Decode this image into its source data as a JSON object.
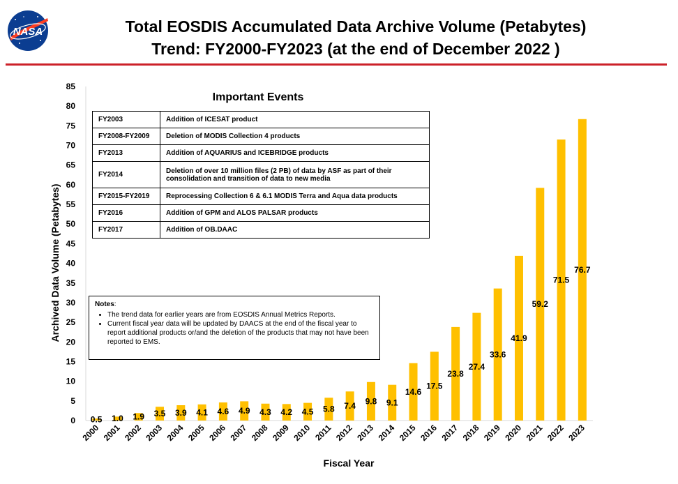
{
  "header": {
    "logo_text": "NASA",
    "title_line1": "Total EOSDIS Accumulated Data Archive Volume (Petabytes)",
    "title_line2": "Trend: FY2000-FY2023 (at the end of December 2022 )"
  },
  "colors": {
    "bar": "#ffc000",
    "rule": "#cc2129",
    "logo_blue": "#0b3d91",
    "logo_red": "#fc3d21"
  },
  "events": {
    "title": "Important Events",
    "rows": [
      {
        "year": "FY2003",
        "desc": "Addition of ICESAT product"
      },
      {
        "year": "FY2008-FY2009",
        "desc": "Deletion of  MODIS Collection 4 products"
      },
      {
        "year": "FY2013",
        "desc": "Addition of AQUARIUS and ICEBRIDGE products"
      },
      {
        "year": "FY2014",
        "desc": "Deletion of over 10 million files (2 PB) of data by ASF as part of their consolidation and transition of data to new media"
      },
      {
        "year": "FY2015-FY2019",
        "desc": "Reprocessing  Collection 6 & 6.1 MODIS Terra and Aqua data products"
      },
      {
        "year": "FY2016",
        "desc": "Addition of GPM and ALOS PALSAR products"
      },
      {
        "year": "FY2017",
        "desc": "Addition of OB.DAAC"
      }
    ]
  },
  "notes": {
    "label": "Notes",
    "items": [
      "The trend data for earlier years are from EOSDIS Annual Metrics Reports.",
      "Current fiscal year data will be updated by DAACS at the end of the fiscal year to report additional products or/and the deletion of the products that may not have been reported to EMS."
    ]
  },
  "chart_data": {
    "type": "bar",
    "title": "Total EOSDIS Accumulated Data Archive Volume (Petabytes)",
    "subtitle": "Trend: FY2000-FY2023 (at the end of December 2022 )",
    "xlabel": "Fiscal Year",
    "ylabel": "Archived Data Volume (Petabytes)",
    "categories": [
      "2000",
      "2001",
      "2002",
      "2003",
      "2004",
      "2005",
      "2006",
      "2007",
      "2008",
      "2009",
      "2010",
      "2011",
      "2012",
      "2013",
      "2014",
      "2015",
      "2016",
      "2017",
      "2018",
      "2019",
      "2020",
      "2021",
      "2022",
      "2023"
    ],
    "values": [
      0.5,
      1.0,
      1.9,
      3.5,
      3.9,
      4.1,
      4.6,
      4.9,
      4.3,
      4.2,
      4.5,
      5.8,
      7.4,
      9.8,
      9.1,
      14.6,
      17.5,
      23.8,
      27.4,
      33.6,
      41.9,
      59.2,
      71.5,
      76.7
    ],
    "data_labels": [
      "0.5",
      "1.0",
      "1.9",
      "3.5",
      "3.9",
      "4.1",
      "4.6",
      "4.9",
      "4.3",
      "4.2",
      "4.5",
      "5.8",
      "7.4",
      "9.8",
      "9.1",
      "14.6",
      "17.5",
      "23.8",
      "27.4",
      "33.6",
      "41.9",
      "59.2",
      "71.5",
      "76.7"
    ],
    "ylim": [
      0,
      85
    ],
    "yticks": [
      0,
      5,
      10,
      15,
      20,
      25,
      30,
      35,
      40,
      45,
      50,
      55,
      60,
      65,
      70,
      75,
      80,
      85
    ],
    "grid": false,
    "legend": "none",
    "bar_color": "#ffc000"
  }
}
